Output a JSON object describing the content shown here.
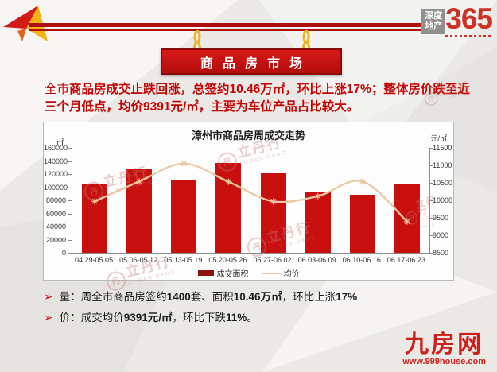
{
  "header": {
    "logo": {
      "box_line1": "深度",
      "box_line2": "地产",
      "number": "365"
    },
    "banner_title": "商品房市场"
  },
  "summary": {
    "prefix": "全市",
    "body": "商品房成交止跌回涨，总签约10.46万㎡，环比上涨17%；整体房价跌至近三个月低点，均价9391元/㎡，主要为车位产品占比较大。"
  },
  "chart_data": {
    "type": "bar+line",
    "title": "漳州市商品房周成交走势",
    "categories": [
      "04.29-05.05",
      "05.06-05.12",
      "05.13-05.19",
      "05.20-05.26",
      "05.27-06.02",
      "06.03-06.09",
      "06.10-06.16",
      "06.17-06.23"
    ],
    "left_axis": {
      "unit": "㎡",
      "min": 0,
      "max": 160000,
      "step": 20000
    },
    "right_axis": {
      "unit": "元/㎡",
      "min": 8500,
      "max": 11500,
      "step": 500
    },
    "series": [
      {
        "name": "成交面积",
        "type": "bar",
        "axis": "left",
        "color": "#c8100f",
        "legend_color": "#8e1212",
        "values": [
          105000,
          129000,
          110000,
          137000,
          121000,
          93000,
          89000,
          104600
        ]
      },
      {
        "name": "均价",
        "type": "line",
        "axis": "right",
        "color": "#ecc9a4",
        "values": [
          9970,
          10540,
          11050,
          10530,
          9970,
          10120,
          10540,
          9391
        ]
      }
    ],
    "legend_position": "bottom",
    "grid": false
  },
  "bullets": [
    {
      "marker": "➢",
      "label": "量：",
      "segments": [
        {
          "text": "周全市商品房签约",
          "bold": false
        },
        {
          "text": "1400",
          "bold": true
        },
        {
          "text": "套、面积",
          "bold": false
        },
        {
          "text": "10.46万㎡",
          "bold": true
        },
        {
          "text": "，环比上涨",
          "bold": false
        },
        {
          "text": "17%",
          "bold": true
        }
      ]
    },
    {
      "marker": "➢",
      "label": "价：",
      "segments": [
        {
          "text": "成交均价",
          "bold": false
        },
        {
          "text": "9391元/㎡",
          "bold": true
        },
        {
          "text": "，环比下跌",
          "bold": false
        },
        {
          "text": "11%",
          "bold": true
        },
        {
          "text": "。",
          "bold": false
        }
      ]
    }
  ],
  "watermark": {
    "seal_char": "丹",
    "text": "立丹行",
    "subtext": "LI DAN HANG"
  },
  "footer": {
    "site_name": "九房网",
    "site_url": "www.999house.com"
  }
}
